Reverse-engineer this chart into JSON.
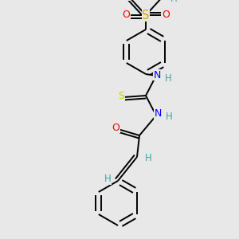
{
  "bg_color": "#e8e8e8",
  "bond_color": "#000000",
  "bond_width": 1.4,
  "atom_colors": {
    "H": "#46a0a0",
    "N": "#0000ff",
    "O": "#ff0000",
    "S": "#ccaa00",
    "S2": "#cccc00"
  },
  "font_size": 8.5,
  "fig_bg": "#e8e8e8"
}
